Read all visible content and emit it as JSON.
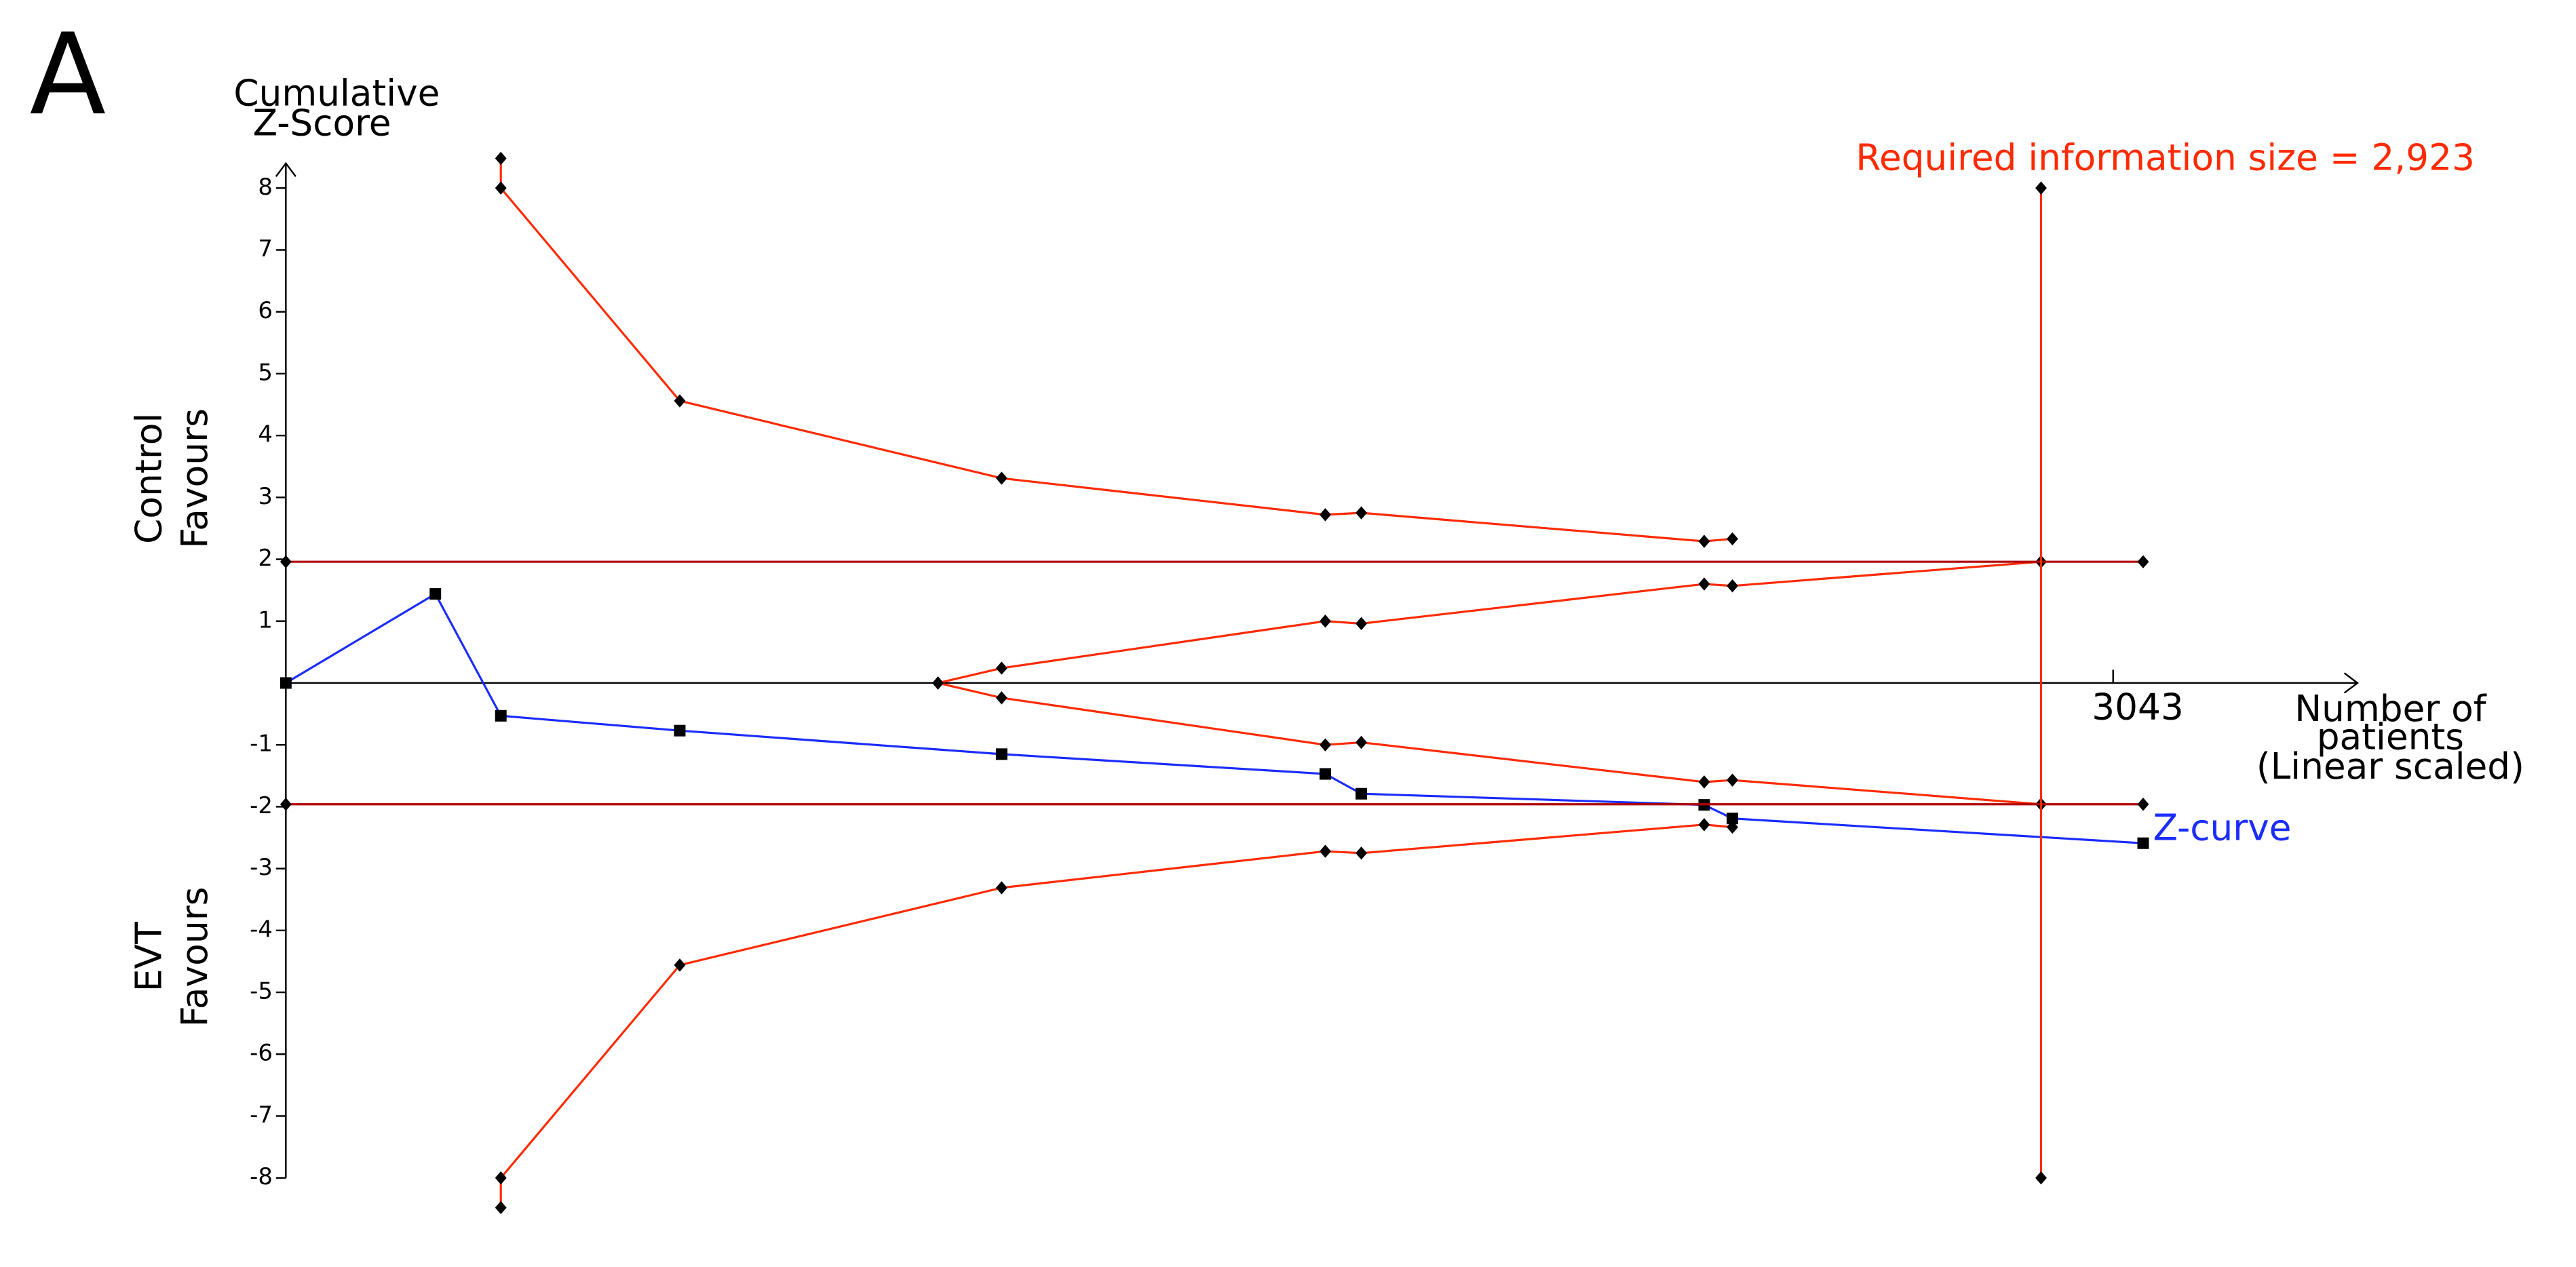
{
  "chart_data": {
    "type": "line",
    "panel_label": "A",
    "y_label": [
      "Cumulative",
      "Z-Score"
    ],
    "upper_region_label": [
      "Control",
      "Favours"
    ],
    "lower_region_label": [
      "EVT",
      "Favours"
    ],
    "x_label": [
      "Number of",
      "patients",
      "(Linear scaled)"
    ],
    "xlim": [
      0,
      3450
    ],
    "ylim": [
      -8,
      8.4
    ],
    "xticks": [
      3043
    ],
    "yticks": [
      -8,
      -7,
      -6,
      -5,
      -4,
      -3,
      -2,
      -1,
      1,
      2,
      3,
      4,
      5,
      6,
      7,
      8
    ],
    "annotation": "Required information size = 2,923",
    "annotation_color": "#ff2a00",
    "series": [
      {
        "name": "Z-curve",
        "color": "#1a2cff",
        "marker": "square",
        "x": [
          0,
          249,
          358,
          656,
          1192,
          1731,
          1791,
          2362,
          2409,
          3093
        ],
        "values": [
          0,
          1.44,
          -0.53,
          -0.77,
          -1.15,
          -1.47,
          -1.79,
          -1.97,
          -2.19,
          -2.59
        ]
      },
      {
        "color": "#ff2a00",
        "marker": "diamond",
        "x": [
          358,
          358,
          656,
          1192,
          1731,
          1791,
          2362,
          2409
        ],
        "values": [
          8.48,
          8,
          4.56,
          3.31,
          2.72,
          2.75,
          2.29,
          2.33
        ]
      },
      {
        "color": "#ff2a00",
        "marker": "diamond",
        "x": [
          358,
          358,
          656,
          1192,
          1731,
          1791,
          2362,
          2409
        ],
        "values": [
          -8.48,
          -8,
          -4.56,
          -3.31,
          -2.72,
          -2.75,
          -2.29,
          -2.33
        ]
      },
      {
        "color": "#ff2a00",
        "marker": "diamond",
        "x": [
          1086,
          1192,
          1731,
          1791,
          2362,
          2409,
          2923
        ],
        "values": [
          0,
          0.24,
          1.0,
          0.96,
          1.6,
          1.57,
          1.96
        ]
      },
      {
        "color": "#ff2a00",
        "marker": "diamond",
        "x": [
          1086,
          1192,
          1731,
          1791,
          2362,
          2409,
          2923
        ],
        "values": [
          0,
          -0.24,
          -1.0,
          -0.96,
          -1.6,
          -1.57,
          -1.96
        ]
      },
      {
        "color": "#b00000",
        "marker": "diamond",
        "x": [
          0,
          3093
        ],
        "values": [
          1.96,
          1.96
        ]
      },
      {
        "color": "#b00000",
        "marker": "diamond",
        "x": [
          0,
          3093
        ],
        "values": [
          -1.96,
          -1.96
        ]
      },
      {
        "color": "#ff2a00",
        "marker": "diamond",
        "x": [
          2923,
          2923
        ],
        "values": [
          -8,
          8
        ]
      }
    ]
  }
}
